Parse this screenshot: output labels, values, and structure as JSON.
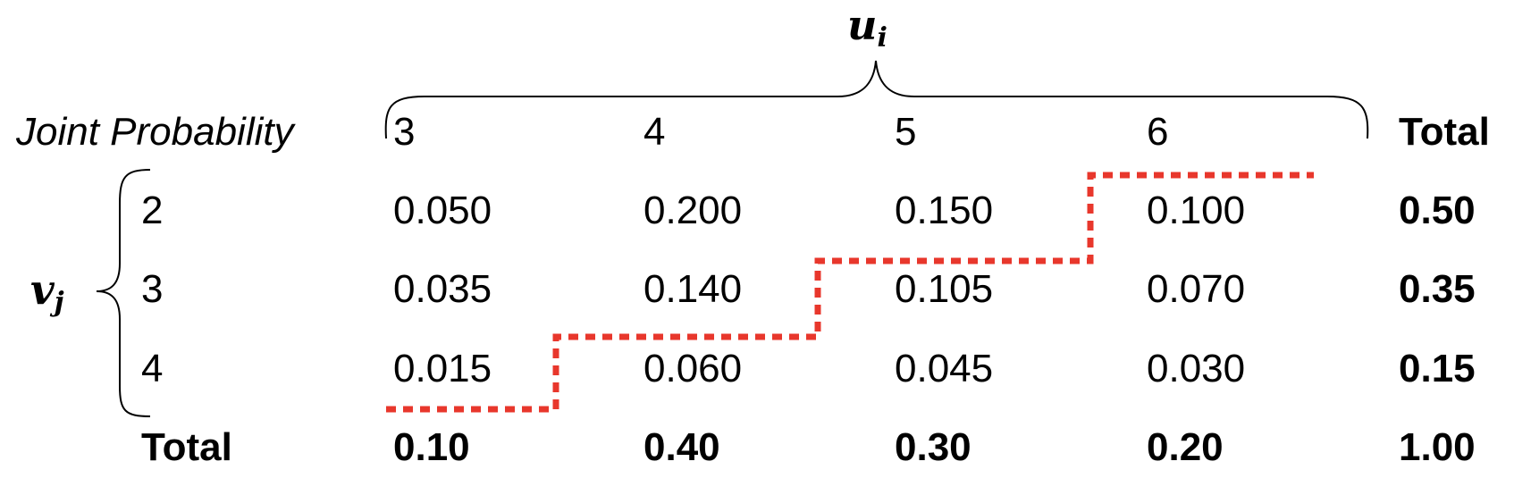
{
  "table": {
    "title": "Joint Probability",
    "col_variable": {
      "base": "u",
      "subscript": "i"
    },
    "row_variable": {
      "base": "v",
      "subscript": "j"
    },
    "columns": [
      "3",
      "4",
      "5",
      "6"
    ],
    "total_label": "Total",
    "rows": [
      {
        "label": "2",
        "cells": [
          "0.050",
          "0.200",
          "0.150",
          "0.100"
        ],
        "total": "0.50"
      },
      {
        "label": "3",
        "cells": [
          "0.035",
          "0.140",
          "0.105",
          "0.070"
        ],
        "total": "0.35"
      },
      {
        "label": "4",
        "cells": [
          "0.015",
          "0.060",
          "0.045",
          "0.030"
        ],
        "total": "0.15"
      }
    ],
    "column_totals": [
      "0.10",
      "0.40",
      "0.30",
      "0.20"
    ],
    "grand_total": "1.00"
  },
  "colors": {
    "text": "#000000",
    "staircase_line": "#e8372c",
    "brace": "#000000"
  }
}
